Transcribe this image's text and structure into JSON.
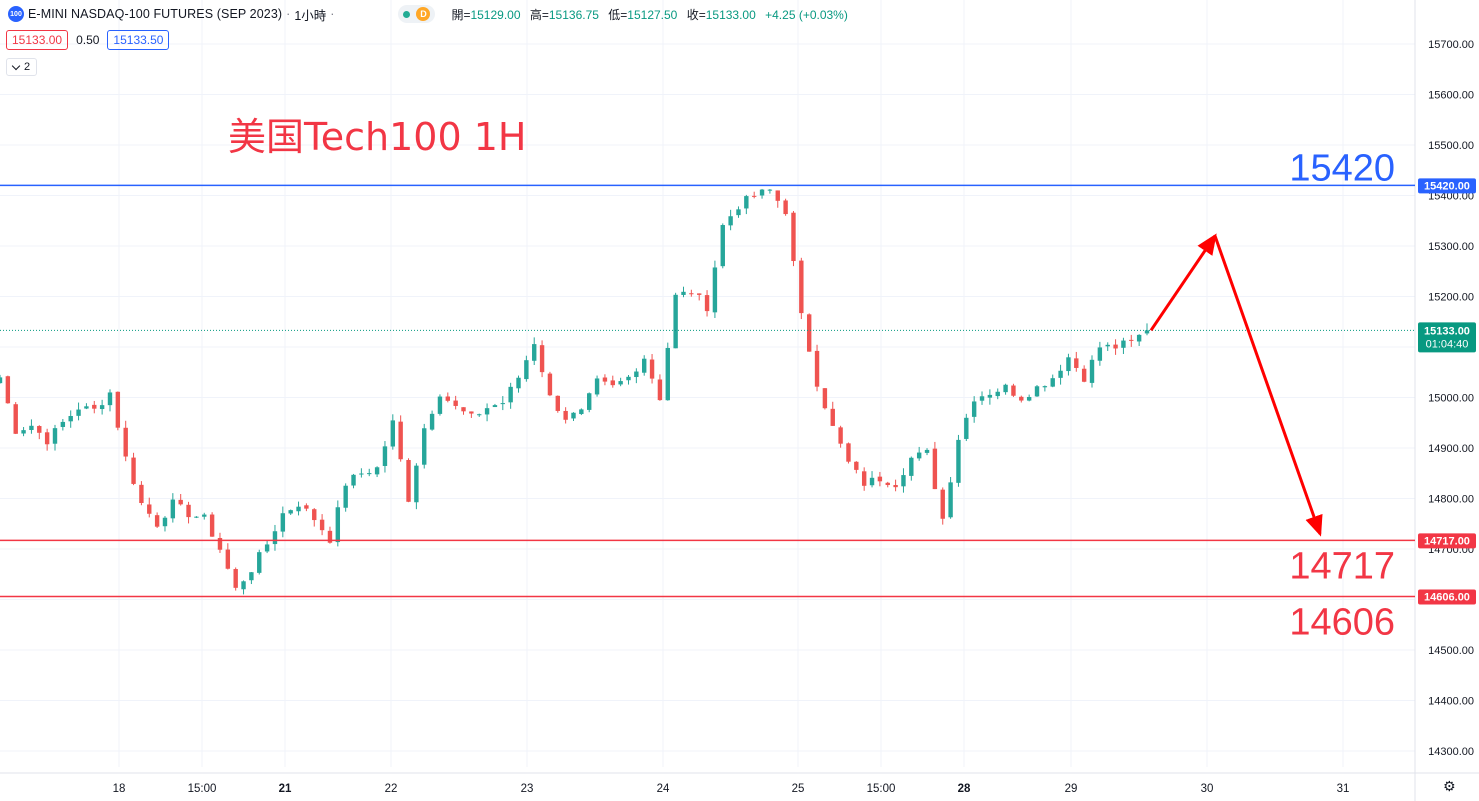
{
  "header": {
    "symbol_logo": "100",
    "title": "E-MINI NASDAQ-100 FUTURES (SEP 2023)",
    "interval": "1小時",
    "status_dot_color": "#22ab94",
    "delay_badge": "D",
    "ohlc": [
      {
        "label": "開=",
        "value": "15129.00"
      },
      {
        "label": "高=",
        "value": "15136.75"
      },
      {
        "label": "低=",
        "value": "15127.50"
      },
      {
        "label": "收=",
        "value": "15133.00"
      },
      {
        "label": "",
        "value": "+4.25 (+0.03%)"
      }
    ]
  },
  "trade": {
    "sell_price": "15133.00",
    "spread": "0.50",
    "buy_price": "15133.50"
  },
  "indicators_toggle": {
    "icon": "chevron-down-icon",
    "count": "2"
  },
  "colors": {
    "up": "#26a69a",
    "down": "#ef5350",
    "resistance": "#2962ff",
    "support": "#f23645",
    "annotation": "#f23645",
    "arrow": "#ff0000",
    "last_price_bg": "#089981"
  },
  "chart_data": {
    "type": "candlestick",
    "title": "美国Tech100 1H",
    "ylim": [
      14260,
      15760
    ],
    "y_ticks": [
      "15700.00",
      "15600.00",
      "15500.00",
      "15400.00",
      "15300.00",
      "15200.00",
      "15100.00",
      "15000.00",
      "14900.00",
      "14800.00",
      "14700.00",
      "14600.00",
      "14500.00",
      "14400.00",
      "14300.00"
    ],
    "x_ticks": [
      "18",
      "15:00",
      "21",
      "22",
      "23",
      "24",
      "25",
      "15:00",
      "28",
      "29",
      "30",
      "31"
    ],
    "bold_x_ticks": [
      "21",
      "28"
    ],
    "last_price": {
      "value": "15133.00",
      "countdown": "01:04:40"
    },
    "horizontal_levels": [
      {
        "value": 15420,
        "label": "15420.00",
        "annotation": "15420",
        "kind": "resistance"
      },
      {
        "value": 14717,
        "label": "14717.00",
        "annotation": "14717",
        "kind": "support"
      },
      {
        "value": 14606,
        "label": "14606.00",
        "annotation": "14606",
        "kind": "support"
      }
    ],
    "projection_path": [
      {
        "x": "29",
        "y": 15133
      },
      {
        "x": "30",
        "y": 15320
      },
      {
        "x": "31",
        "y": 14730
      }
    ],
    "price_path": [
      15040,
      14935,
      14945,
      14915,
      14950,
      14980,
      14975,
      15010,
      14880,
      14790,
      14750,
      14790,
      14770,
      14760,
      14700,
      14620,
      14660,
      14710,
      14770,
      14790,
      14760,
      14720,
      14830,
      14850,
      14860,
      14950,
      14800,
      14940,
      15010,
      14980,
      14960,
      14980,
      14990,
      15040,
      15110,
      15000,
      14960,
      14970,
      15030,
      15020,
      15040,
      15080,
      15000,
      15200,
      15210,
      15180,
      15340,
      15380,
      15400,
      15410,
      15370,
      15160,
      15030,
      14940,
      14870,
      14830,
      14840,
      14830,
      14880,
      14890,
      14760,
      14920,
      15000,
      15010,
      15020,
      15000,
      15020,
      15040,
      15080,
      15040,
      15100,
      15100,
      15110,
      15133
    ]
  }
}
